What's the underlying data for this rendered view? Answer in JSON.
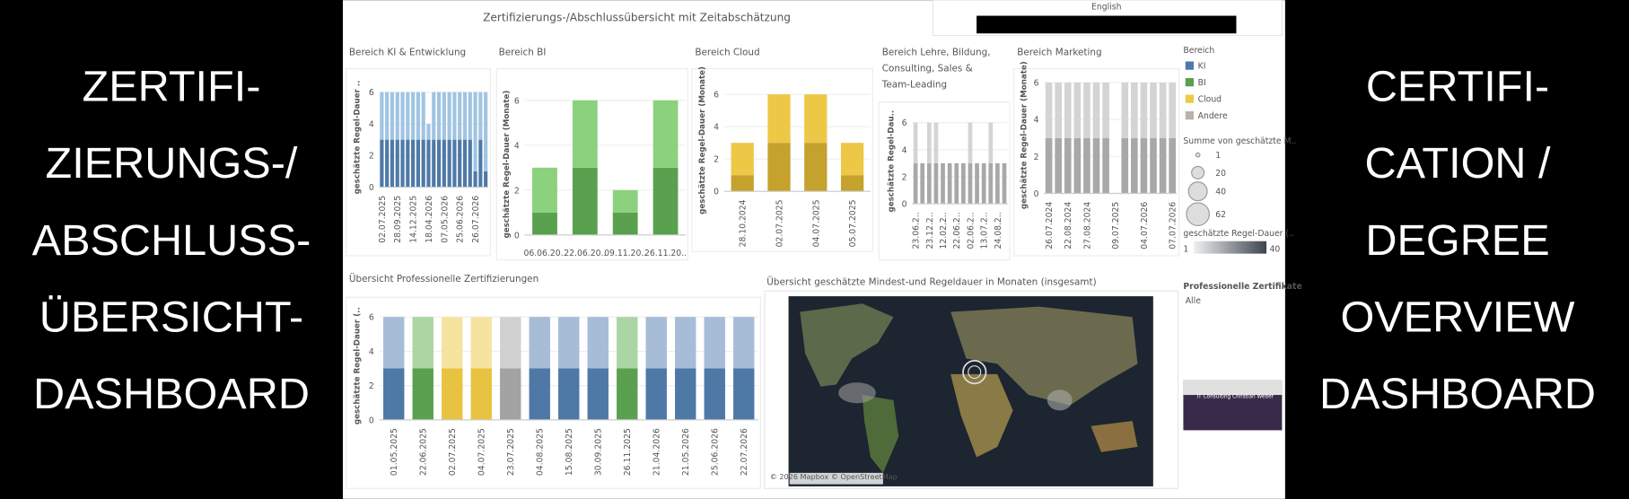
{
  "left_banner": [
    "ZERTIFI-",
    "ZIERUNGS-/",
    "ABSCHLUSS-",
    "ÜBERSICHT-",
    "DASHBOARD"
  ],
  "right_banner": [
    "CERTIFI-",
    "CATION /",
    "DEGREE",
    "OVERVIEW",
    "DASHBOARD"
  ],
  "dashboard_title": "Zertifizierungs-/Abschlussübersicht mit Zeitabschätzung",
  "language": "English",
  "chart_data": [
    {
      "type": "bar",
      "title": "Bereich KI & Entwicklung",
      "y_label": "geschätzte Regel-Dauer ..",
      "categories": [
        "02.07.2025",
        null,
        null,
        "28.09.2025",
        null,
        null,
        "14.12.2025",
        null,
        null,
        "18.04.2026",
        null,
        null,
        "07.05.2026",
        null,
        null,
        "25.06.2026",
        null,
        null,
        "26.07.2026",
        null,
        null
      ],
      "series": [
        {
          "color": "#4e79a7",
          "values": [
            3,
            3,
            3,
            3,
            3,
            3,
            3,
            3,
            3,
            3,
            3,
            3,
            3,
            3,
            3,
            3,
            3,
            3,
            1,
            3,
            1
          ]
        },
        {
          "color": "#a0c4e2",
          "values": [
            3,
            3,
            3,
            3,
            3,
            3,
            3,
            3,
            3,
            1,
            3,
            3,
            3,
            3,
            3,
            3,
            3,
            3,
            5,
            3,
            5
          ]
        }
      ],
      "ylim": [
        0,
        6.3
      ],
      "yticks": [
        0,
        2,
        4,
        6
      ]
    },
    {
      "type": "bar",
      "title": "Bereich BI",
      "y_label": "geschätzte Regel-Dauer (Monate)",
      "categories": [
        "06.06.20..",
        "22.06.20..",
        "09.11.20..",
        "26.11.20.."
      ],
      "series": [
        {
          "color": "#59a14f",
          "values": [
            1,
            3,
            1,
            3
          ]
        },
        {
          "color": "#8cd17d",
          "values": [
            2,
            3,
            1,
            3
          ]
        }
      ],
      "ylim": [
        0,
        6.3
      ],
      "yticks": [
        0,
        2,
        4,
        6
      ]
    },
    {
      "type": "bar",
      "title": "Bereich Cloud",
      "y_label": "geschätzte Regel-Dauer (Monate)",
      "categories": [
        "28.10.2024",
        "02.07.2025",
        "04.07.2025",
        "05.07.2025"
      ],
      "series": [
        {
          "color": "#c4a22d",
          "values": [
            1,
            3,
            3,
            1
          ]
        },
        {
          "color": "#ecc846",
          "values": [
            2,
            3,
            3,
            2
          ]
        }
      ],
      "ylim": [
        0,
        6.3
      ],
      "yticks": [
        0,
        2,
        4,
        6
      ]
    },
    {
      "type": "bar",
      "title": [
        "Bereich Lehre, Bildung,",
        "Consulting, Sales &",
        "Team-Leading"
      ],
      "y_label": "geschätzte Regel-Dau..",
      "categories": [
        "23.06.2..",
        null,
        "23.12.2..",
        null,
        "12.02.2..",
        null,
        "22.06.2..",
        null,
        "02.06.2..",
        null,
        "13.07.2..",
        null,
        "24.08.2..",
        null
      ],
      "series": [
        {
          "color": "#a8a8a8",
          "values": [
            3,
            3,
            3,
            3,
            3,
            3,
            3,
            3,
            3,
            3,
            3,
            3,
            3,
            3
          ]
        },
        {
          "color": "#d4d4d4",
          "values": [
            3,
            0,
            3,
            3,
            0,
            0,
            0,
            0,
            3,
            0,
            0,
            3,
            0,
            0
          ]
        }
      ],
      "ylim": [
        0,
        6.3
      ],
      "yticks": [
        0,
        2,
        4,
        6
      ]
    },
    {
      "type": "bar",
      "title": "Bereich Marketing",
      "y_label": "geschätzte Regel-Dauer (Monate)",
      "categories": [
        "26.07.2024",
        null,
        "22.08.2024",
        null,
        "27.08.2024",
        null,
        null,
        "09.07.2025",
        null,
        null,
        "04.07.2026",
        null,
        null,
        "07.07.2026"
      ],
      "series": [
        {
          "color": "#a8a8a8",
          "values": [
            3,
            3,
            3,
            3,
            3,
            3,
            3,
            0,
            3,
            3,
            3,
            3,
            3,
            3
          ]
        },
        {
          "color": "#d4d4d4",
          "values": [
            3,
            3,
            3,
            3,
            3,
            3,
            3,
            0,
            3,
            3,
            3,
            3,
            3,
            3
          ]
        }
      ],
      "ylim": [
        0,
        6.3
      ],
      "yticks": [
        0,
        2,
        4,
        6
      ]
    },
    {
      "type": "bar",
      "title": "Übersicht Professionelle Zertifizierungen",
      "y_label": "geschätzte Regel-Dauer (..",
      "categories": [
        "01.05.2025",
        "22.06.2025",
        "02.07.2025",
        "04.07.2025",
        "23.07.2025",
        "04.08.2025",
        "15.08.2025",
        "30.09.2025",
        "26.11.2025",
        "21.04.2026",
        "21.05.2026",
        "25.06.2026",
        "22.07.2026"
      ],
      "series": [
        {
          "colors": [
            "#4e79a7",
            "#59a14f",
            "#e8c341",
            "#e8c341",
            "#a3a3a3",
            "#4e79a7",
            "#4e79a7",
            "#4e79a7",
            "#59a14f",
            "#4e79a7",
            "#4e79a7",
            "#4e79a7",
            "#4e79a7"
          ],
          "values": [
            3,
            3,
            3,
            3,
            3,
            3,
            3,
            3,
            3,
            3,
            3,
            3,
            3
          ]
        },
        {
          "colors": [
            "#a7bcd6",
            "#abd5a2",
            "#f6e3a0",
            "#f6e3a0",
            "#d1d1d1",
            "#a7bcd6",
            "#a7bcd6",
            "#a7bcd6",
            "#abd5a2",
            "#a7bcd6",
            "#a7bcd6",
            "#a7bcd6",
            "#a7bcd6"
          ],
          "values": [
            3,
            3,
            3,
            3,
            3,
            3,
            3,
            3,
            3,
            3,
            3,
            3,
            3
          ]
        }
      ],
      "ylim": [
        0,
        6.3
      ],
      "yticks": [
        0,
        2,
        4,
        6
      ]
    }
  ],
  "map": {
    "title": "Übersicht geschätzte Mindest-und Regeldauer in Monaten (insgesamt)",
    "credit": "© 2026 Mapbox © OpenStreetMap"
  },
  "legend": {
    "title": "Bereich",
    "items": [
      {
        "label": "KI",
        "color": "#4e79a7"
      },
      {
        "label": "BI",
        "color": "#59a14f"
      },
      {
        "label": "Cloud",
        "color": "#edc948"
      },
      {
        "label": "Andere",
        "color": "#bab0ac"
      }
    ],
    "size_title": "Summe von geschätzte M..",
    "sizes": [
      1,
      20,
      40,
      62
    ],
    "gradient_title": "geschätzte Regel-Dauer (..",
    "gradient_range": [
      1,
      40
    ]
  },
  "filter": {
    "title": "Professionelle Zertifikate",
    "value": "Alle"
  },
  "thumbnail_text": "IT Consulting Christian Weber"
}
